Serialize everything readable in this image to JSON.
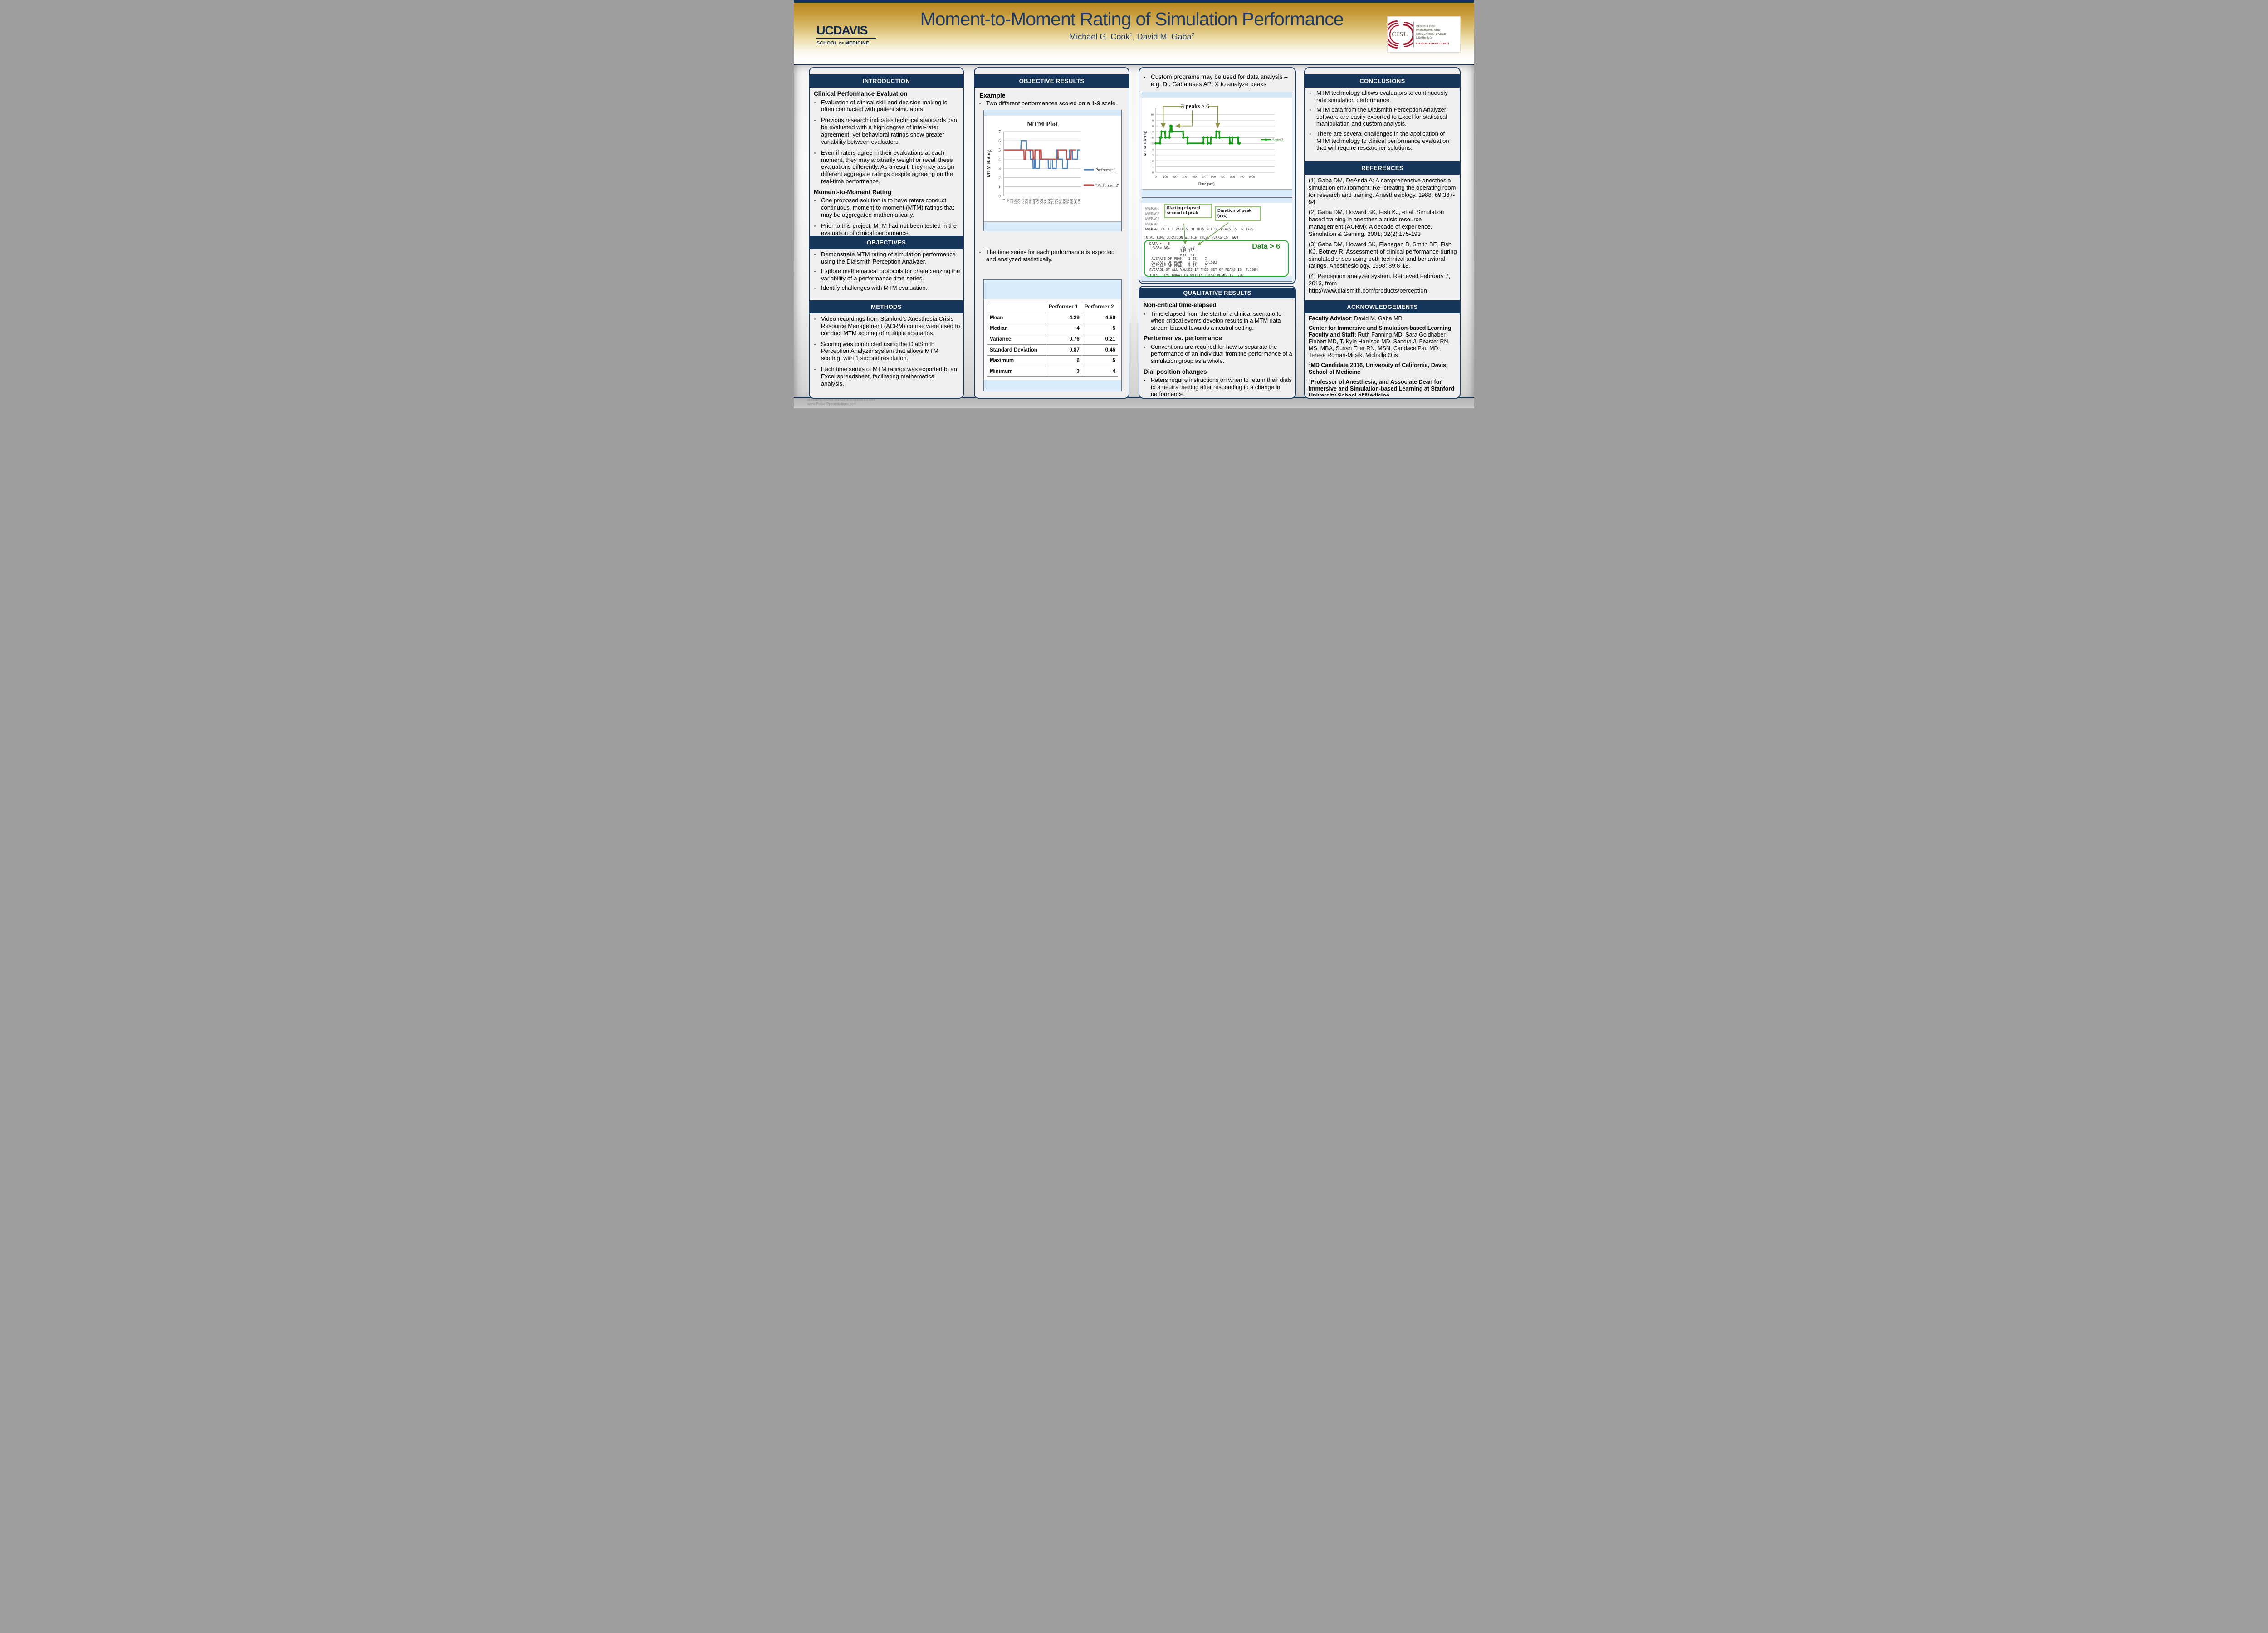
{
  "ui": {
    "bullet_char": "▪"
  },
  "header": {
    "ucdavis": {
      "wordmark": "UCDAVIS",
      "school": "SCHOOL",
      "of": "OF",
      "medicine": "MEDICINE"
    },
    "title": "Moment-to-Moment Rating of Simulation Performance",
    "authors": {
      "a1": "Michael G. Cook",
      "s1": "1",
      "sep": ", ",
      "a2": "David M. Gaba",
      "s2": "2"
    },
    "cisl": {
      "abbr": "CISL",
      "name": "CENTER FOR IMMERSIVE AND SIMULATION-BASED LEARNING",
      "subtitle": "STANFORD SCHOOL OF MEDI"
    }
  },
  "sections": {
    "introduction": {
      "title": "INTRODUCTION",
      "heading1": "Clinical Performance Evaluation",
      "bullets1": [
        "Evaluation of clinical skill and decision making is often conducted with patient simulators.",
        "Previous research indicates technical standards can be evaluated with a high degree of inter-rater agreement, yet behavioral ratings show greater variability between evaluators.",
        "Even if raters agree in their evaluations at each moment, they may arbitrarily weight or recall these evaluations differently. As a result, they may assign different aggregate ratings despite agreeing on the real-time performance."
      ],
      "heading2": "Moment-to-Moment Rating",
      "bullets2": [
        "One proposed solution is to have raters conduct continuous, moment-to-moment (MTM) ratings that may be aggregated mathematically.",
        "Prior to this project, MTM had not been tested in the evaluation of clinical performance."
      ]
    },
    "objectives": {
      "title": "OBJECTIVES",
      "bullets": [
        "Demonstrate MTM rating of simulation performance using the Dialsmith Perception Analyzer.",
        "Explore mathematical protocols for characterizing the variability of a performance time-series.",
        "Identify challenges with MTM evaluation."
      ]
    },
    "methods": {
      "title": "METHODS",
      "bullets": [
        "Video recordings from Stanford's Anesthesia Crisis Resource Management (ACRM) course were used to conduct MTM scoring of multiple scenarios.",
        "Scoring was conducted using the DialSmith Perception Analyzer system that allows MTM scoring, with 1 second resolution.",
        "Each time series of MTM ratings was exported to an Excel spreadsheet, facilitating mathematical analysis."
      ]
    },
    "objective_results": {
      "title": "OBJECTIVE RESULTS",
      "heading": "Example",
      "bullet1": "Two different performances scored on a 1-9 scale.",
      "bullet2": "The time series for each performance is exported and analyzed statistically.",
      "table": {
        "headers": [
          "",
          "Performer 1",
          "Performer 2"
        ],
        "rows": [
          [
            "Mean",
            "4.29",
            "4.69"
          ],
          [
            "Median",
            "4",
            "5"
          ],
          [
            "Variance",
            "0.76",
            "0.21"
          ],
          [
            "Standard Deviation",
            "0.87",
            "0.46"
          ],
          [
            "Maximum",
            "6",
            "5"
          ],
          [
            "Minimum",
            "3",
            "4"
          ]
        ]
      }
    },
    "analysis": {
      "bullet": "Custom programs may be used for data analysis – e.g. Dr. Gaba uses APLX to analyze peaks",
      "callout_start": "Starting elapsed second of peak",
      "callout_duration": "Duration of peak (sec)",
      "aplx": {
        "bg_lines": [
          "AVERAGE",
          "AVERAGE",
          "AVERAGE",
          "AVERAGE"
        ],
        "line_avg": "AVERAGE OF ALL VALUES IN THIS SET OF PEAKS IS  6.3725",
        "line_total": "TOTAL TIME DURATION WITHIN THESE PEAKS IS  604",
        "box_lines": [
          "DATA >   6",
          " PEAKS ARE      66  33",
          "               145 139",
          "               631  31",
          " AVERAGE OF PEAK   1 IS    7",
          " AVERAGE OF PEAK   2 IS    7.1583",
          " AVERAGE OF PEAK   3 IS    7",
          "AVERAGE OF ALL VALUES IN THIS SET OF PEAKS IS  7.1084",
          "TOTAL TIME DURATION WITHIN THESE PEAKS IS  203"
        ],
        "data_label": "Data > 6"
      }
    },
    "qualitative": {
      "title": "QUALITATIVE RESULTS",
      "items": [
        {
          "heading": "Non-critical time-elapsed",
          "bullet": "Time elapsed from the start of a clinical scenario to when critical events develop results in a MTM data stream biased towards a neutral setting."
        },
        {
          "heading": "Performer vs. performance",
          "bullet": "Conventions are required for how to separate the performance of an individual from the performance of a simulation group as a whole."
        },
        {
          "heading": "Dial position changes",
          "bullet": "Raters require instructions on when to return their dials to a neutral setting after responding to a change in performance."
        }
      ]
    },
    "conclusions": {
      "title": "CONCLUSIONS",
      "bullets": [
        "MTM technology allows evaluators to continuously rate simulation performance.",
        "MTM data from the Dialsmith Perception Analyzer software are easily exported to Excel for statistical manipulation and custom analysis.",
        "There are several challenges in the application of MTM technology to clinical performance evaluation that will require researcher solutions."
      ]
    },
    "references": {
      "title": "REFERENCES",
      "items": [
        "(1) Gaba DM, DeAnda A: A comprehensive anesthesia simulation environment: Re- creating the operating room for research and training. Anesthesiology. 1988; 69:387-94",
        "(2) Gaba DM, Howard SK, Fish KJ, et al. Simulation based training in anesthesia crisis resource management (ACRM): A decade of experience. Simulation & Gaming. 2001; 32(2):175-193",
        "(3) Gaba DM, Howard SK, Flanagan B, Smith BE, Fish KJ, Botney R. Assessment of clinical performance during simulated crises using both technical and behavioral ratings. Anesthesiology. 1998; 89:8-18.",
        "(4) Perception analyzer system. Retrieved February 7, 2013, from http://www.dialsmith.com/products/perception-"
      ]
    },
    "acknowledgements": {
      "title": "ACKNOWLEDGEMENTS",
      "paragraphs": [
        {
          "sup": "",
          "bold": "Faculty Advisor",
          "rest": ": David M. Gaba MD"
        },
        {
          "sup": "",
          "bold": "Center for Immersive and Simulation-based Learning Faculty and Staff:",
          "rest": " Ruth Fanning MD, Sara Goldhaber-Fiebert MD, T. Kyle Harrison MD, Sandra J. Feaster RN, MS, MBA, Susan Eller RN, MSN, Candace Pau MD, Teresa Roman-Micek, Michelle Otis"
        },
        {
          "sup": "1",
          "bold": "MD Candidate 2016, University of California, Davis, School of Medicine",
          "rest": ""
        },
        {
          "sup": "2",
          "bold": "Professor of Anesthesia, and Associate Dean for Immersive and Simulation-based Learning at Stanford University School of Medicine",
          "rest": ""
        }
      ]
    }
  },
  "chart_data": [
    {
      "type": "line",
      "title": "MTM Plot",
      "xlabel": "",
      "ylabel": "MTM Rating",
      "ylim": [
        0,
        7
      ],
      "xlim": [
        1,
        1130
      ],
      "y_ticks": [
        0,
        1,
        2,
        3,
        4,
        5,
        6,
        7
      ],
      "x_ticks": [
        1,
        56,
        111,
        166,
        221,
        276,
        331,
        386,
        441,
        496,
        551,
        606,
        661,
        716,
        771,
        826,
        881,
        936,
        991,
        1046,
        1101
      ],
      "grid": true,
      "legend_position": "right",
      "series": [
        {
          "name": "Performer 1",
          "color": "#4F81BD",
          "points": [
            [
              1,
              5
            ],
            [
              250,
              5
            ],
            [
              255,
              6
            ],
            [
              330,
              6
            ],
            [
              335,
              5
            ],
            [
              385,
              5
            ],
            [
              390,
              4
            ],
            [
              427,
              4
            ],
            [
              430,
              3
            ],
            [
              447,
              3
            ],
            [
              450,
              4
            ],
            [
              463,
              4
            ],
            [
              466,
              3
            ],
            [
              520,
              3
            ],
            [
              523,
              4
            ],
            [
              558,
              4
            ],
            [
              561,
              4
            ],
            [
              650,
              4
            ],
            [
              653,
              3
            ],
            [
              688,
              3
            ],
            [
              691,
              4
            ],
            [
              713,
              4
            ],
            [
              716,
              3
            ],
            [
              768,
              3
            ],
            [
              771,
              5
            ],
            [
              793,
              5
            ],
            [
              796,
              4
            ],
            [
              860,
              4
            ],
            [
              863,
              3
            ],
            [
              930,
              3
            ],
            [
              933,
              4
            ],
            [
              958,
              4
            ],
            [
              961,
              5
            ],
            [
              1005,
              5
            ],
            [
              1008,
              4
            ],
            [
              1080,
              4
            ],
            [
              1083,
              5
            ],
            [
              1115,
              5
            ]
          ]
        },
        {
          "name": "\"Performer 2\"",
          "color": "#C0504D",
          "points": [
            [
              1,
              5
            ],
            [
              295,
              5
            ],
            [
              298,
              4
            ],
            [
              320,
              4
            ],
            [
              323,
              5
            ],
            [
              428,
              5
            ],
            [
              431,
              4
            ],
            [
              455,
              4
            ],
            [
              458,
              5
            ],
            [
              520,
              5
            ],
            [
              523,
              4
            ],
            [
              528,
              4
            ],
            [
              531,
              5
            ],
            [
              548,
              5
            ],
            [
              551,
              4
            ],
            [
              790,
              4
            ],
            [
              793,
              5
            ],
            [
              920,
              5
            ],
            [
              923,
              4
            ],
            [
              985,
              4
            ],
            [
              988,
              5
            ],
            [
              1060,
              5
            ]
          ]
        }
      ]
    },
    {
      "type": "line",
      "title": "",
      "annotation": "3 peaks > 6",
      "xlabel": "Time (sec)",
      "ylabel": "MTM Rating",
      "ylim": [
        0,
        10
      ],
      "xlim": [
        0,
        1050
      ],
      "x_tick_step": 100,
      "x_tick_max": 1000,
      "grid": true,
      "legend_position": "right",
      "series": [
        {
          "name": "Series2",
          "color": "#169A16",
          "points": [
            [
              0,
              5
            ],
            [
              45,
              5
            ],
            [
              48,
              6
            ],
            [
              57,
              6
            ],
            [
              60,
              7
            ],
            [
              97,
              7
            ],
            [
              100,
              6
            ],
            [
              142,
              6
            ],
            [
              145,
              7
            ],
            [
              150,
              7
            ],
            [
              153,
              8
            ],
            [
              165,
              8
            ],
            [
              168,
              7
            ],
            [
              284,
              7
            ],
            [
              287,
              6
            ],
            [
              330,
              6
            ],
            [
              333,
              5
            ],
            [
              495,
              5
            ],
            [
              498,
              6
            ],
            [
              540,
              6
            ],
            [
              543,
              5
            ],
            [
              572,
              5
            ],
            [
              575,
              6
            ],
            [
              628,
              6
            ],
            [
              631,
              7
            ],
            [
              662,
              7
            ],
            [
              665,
              6
            ],
            [
              770,
              6
            ],
            [
              773,
              5
            ],
            [
              795,
              5
            ],
            [
              798,
              6
            ],
            [
              858,
              6
            ],
            [
              861,
              5
            ],
            [
              875,
              5
            ]
          ]
        }
      ],
      "peaks": [
        {
          "start": 66,
          "duration": 33
        },
        {
          "start": 145,
          "duration": 139
        },
        {
          "start": 631,
          "duration": 31
        }
      ],
      "peak_arrow_targets": [
        [
          78,
          7
        ],
        [
          158,
          8
        ],
        [
          646,
          7
        ]
      ]
    }
  ],
  "footer": {
    "line1": "RESEARCH POSTER PRESENTATION DESIGN © 2012",
    "line2": "www.PosterPresentations.com"
  },
  "colors": {
    "navy": "#16365C",
    "gold": "#C0922C",
    "light_blue": "#D9EAF9",
    "performer1": "#4F81BD",
    "performer2": "#C0504D",
    "series2_green": "#169A16",
    "annotation_olive": "#8F9246",
    "data_label_green": "#1E7F1E"
  }
}
